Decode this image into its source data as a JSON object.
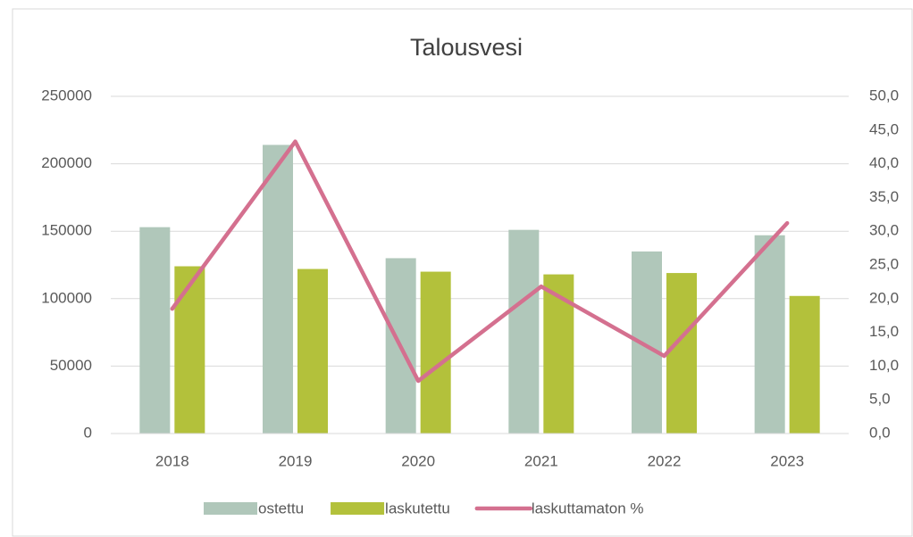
{
  "chart_data": {
    "type": "bar",
    "title": "Talousvesi",
    "categories": [
      "2018",
      "2019",
      "2020",
      "2021",
      "2022",
      "2023"
    ],
    "series": [
      {
        "name": "ostettu",
        "color": "#b0c7ba",
        "values": [
          153000,
          214000,
          130000,
          151000,
          135000,
          147000
        ]
      },
      {
        "name": "laskutettu",
        "color": "#b3c13b",
        "values": [
          124000,
          122000,
          120000,
          118000,
          119000,
          102000
        ]
      },
      {
        "name": "laskuttamaton %",
        "color": "#d4708f",
        "type": "line",
        "axis": "y2",
        "values": [
          18.5,
          43.3,
          7.8,
          21.8,
          11.5,
          31.2
        ]
      }
    ],
    "ylim": [
      0,
      250000
    ],
    "yticks": [
      0,
      50000,
      100000,
      150000,
      200000,
      250000
    ],
    "y2lim": [
      0,
      50
    ],
    "y2ticks": [
      {
        "value": 0,
        "label": "0,0"
      },
      {
        "value": 5,
        "label": "5,0"
      },
      {
        "value": 10,
        "label": "10,0"
      },
      {
        "value": 15,
        "label": "15,0"
      },
      {
        "value": 20,
        "label": "20,0"
      },
      {
        "value": 25,
        "label": "25,0"
      },
      {
        "value": 30,
        "label": "30,0"
      },
      {
        "value": 35,
        "label": "35,0"
      },
      {
        "value": 40,
        "label": "40,0"
      },
      {
        "value": 45,
        "label": "45,0"
      },
      {
        "value": 50,
        "label": "50,0"
      }
    ],
    "grid": true,
    "legend": "bottom"
  }
}
